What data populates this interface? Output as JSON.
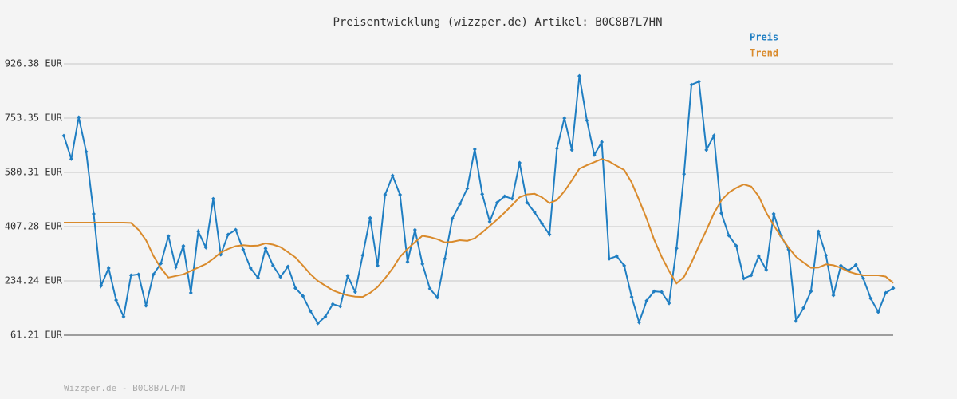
{
  "chart_data": {
    "type": "line",
    "title": "Preisentwicklung (wizzper.de) Artikel: B0C8B7L7HN",
    "footer": "Wizzper.de - B0C8B7L7HN",
    "ylim": [
      61.21,
      926.38
    ],
    "yticks": [
      {
        "value": 61.21,
        "label": "61.21 EUR"
      },
      {
        "value": 234.24,
        "label": "234.24 EUR"
      },
      {
        "value": 407.28,
        "label": "407.28 EUR"
      },
      {
        "value": 580.31,
        "label": "580.31 EUR"
      },
      {
        "value": 753.35,
        "label": "753.35 EUR"
      },
      {
        "value": 926.38,
        "label": "926.38 EUR"
      }
    ],
    "grid": true,
    "series": [
      {
        "name": "Preis",
        "color": "#1f7ec2",
        "markers": true,
        "values": [
          697,
          623,
          756,
          646,
          448,
          219,
          275,
          173,
          120,
          252,
          255,
          155,
          255,
          290,
          377,
          278,
          346,
          196,
          392,
          341,
          496,
          318,
          382,
          397,
          334,
          275,
          244,
          338,
          283,
          247,
          280,
          211,
          186,
          138,
          99,
          120,
          160,
          153,
          250,
          199,
          316,
          435,
          283,
          509,
          570,
          509,
          295,
          397,
          288,
          209,
          181,
          305,
          433,
          479,
          529,
          654,
          511,
          423,
          484,
          504,
          496,
          611,
          484,
          453,
          417,
          382,
          657,
          753,
          652,
          888,
          746,
          636,
          677,
          305,
          313,
          283,
          183,
          102,
          171,
          201,
          199,
          163,
          338,
          575,
          860,
          870,
          652,
          697,
          450,
          379,
          346,
          242,
          252,
          313,
          270,
          448,
          377,
          334,
          107,
          148,
          201,
          392,
          316,
          188,
          283,
          267,
          285,
          242,
          178,
          135,
          196,
          211
        ]
      },
      {
        "name": "Trend",
        "color": "#d98a2b",
        "markers": false,
        "values": [
          420,
          420,
          420,
          420,
          420,
          420,
          420,
          420,
          420,
          419,
          397,
          364,
          314,
          275,
          245,
          250,
          255,
          266,
          277,
          288,
          305,
          325,
          336,
          345,
          348,
          346,
          347,
          354,
          350,
          342,
          326,
          309,
          283,
          256,
          234,
          219,
          204,
          195,
          188,
          184,
          183,
          196,
          215,
          243,
          274,
          311,
          336,
          358,
          378,
          374,
          367,
          357,
          359,
          364,
          362,
          370,
          389,
          409,
          430,
          452,
          476,
          501,
          510,
          512,
          501,
          482,
          492,
          520,
          555,
          592,
          603,
          613,
          623,
          615,
          601,
          588,
          548,
          492,
          433,
          366,
          312,
          266,
          226,
          247,
          292,
          346,
          396,
          449,
          491,
          516,
          531,
          542,
          535,
          504,
          452,
          412,
          374,
          340,
          311,
          293,
          276,
          277,
          287,
          284,
          276,
          264,
          257,
          252,
          252,
          252,
          248,
          227
        ]
      }
    ]
  }
}
